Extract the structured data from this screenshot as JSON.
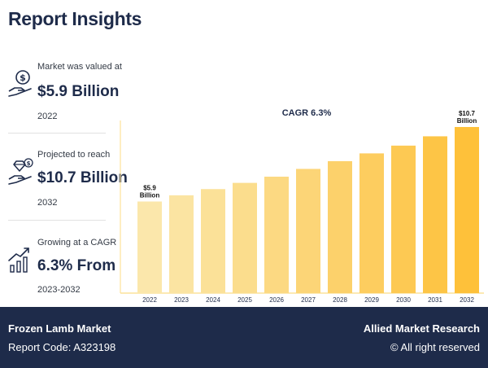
{
  "header": {
    "title": "Report Insights"
  },
  "stats": [
    {
      "label": "Market was valued at",
      "value": "$5.9 Billion",
      "sub": "2022",
      "icon": "money-hand-icon"
    },
    {
      "label": "Projected to reach",
      "value": "$10.7 Billion",
      "sub": "2032",
      "icon": "diamond-hand-icon"
    },
    {
      "label": "Growing at a CAGR",
      "value": "6.3% From",
      "sub": "2023-2032",
      "icon": "growth-chart-icon"
    }
  ],
  "chart_data": {
    "type": "bar",
    "title": "CAGR 6.3%",
    "categories": [
      "2022",
      "2023",
      "2024",
      "2025",
      "2026",
      "2027",
      "2028",
      "2029",
      "2030",
      "2031",
      "2032"
    ],
    "values": [
      5.9,
      6.3,
      6.7,
      7.1,
      7.5,
      8.0,
      8.5,
      9.0,
      9.5,
      10.1,
      10.7
    ],
    "annotations": [
      {
        "index": 0,
        "line1": "$5.9",
        "line2": "Billion"
      },
      {
        "index": 10,
        "line1": "$10.7",
        "line2": "Billion"
      }
    ],
    "ylim": [
      0,
      11.8
    ],
    "colors": [
      "#fbe7ab",
      "#fbe4a2",
      "#fbe198",
      "#fbdd8d",
      "#fcd982",
      "#fcd577",
      "#fcd16b",
      "#fdcd5f",
      "#fdc953",
      "#fdc546",
      "#fec13a"
    ],
    "axis_color": "#fce29a"
  },
  "footer": {
    "market": "Frozen Lamb Market",
    "report_code": "Report Code: A323198",
    "company": "Allied Market Research",
    "rights": "© All right reserved"
  }
}
